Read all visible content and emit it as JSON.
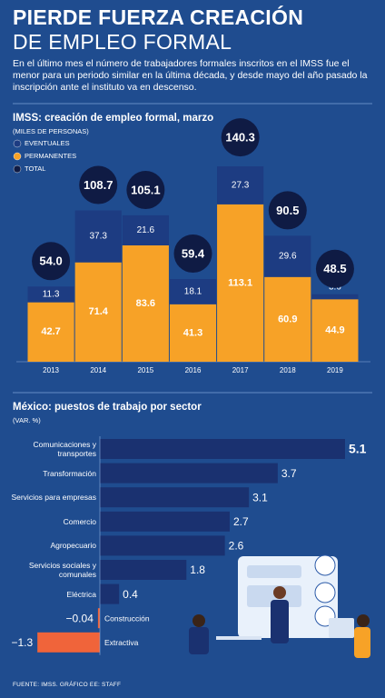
{
  "header": {
    "title_line1": "PIERDE FUERZA CREACIÓN",
    "title_line2": "DE EMPLEO FORMAL",
    "description": "En el último mes el número de trabajadores formales inscritos en el IMSS fue el menor para un periodo similar en la última década, y desde mayo del año pasado la inscripción ante el instituto va en descenso."
  },
  "chart_data": [
    {
      "type": "bar",
      "stacked": true,
      "title": "IMSS: creación de empleo formal, marzo",
      "subtitle": "(MILES DE PERSONAS)",
      "categories": [
        "2013",
        "2014",
        "2015",
        "2016",
        "2017",
        "2018",
        "2019"
      ],
      "series": [
        {
          "name": "EVENTUALES",
          "color": "#1d3c82",
          "values": [
            11.3,
            37.3,
            21.6,
            18.1,
            27.3,
            29.6,
            3.6
          ]
        },
        {
          "name": "PERMANENTES",
          "color": "#f7a227",
          "values": [
            42.7,
            71.4,
            83.6,
            41.3,
            113.1,
            60.9,
            44.9
          ]
        },
        {
          "name": "TOTAL",
          "color": "#0f1b44",
          "marker": "circle",
          "values": [
            54.0,
            108.7,
            105.1,
            59.4,
            140.3,
            90.5,
            48.5
          ],
          "value_labels": [
            "54.0",
            "108.7",
            "105.1",
            "59.4",
            "140.3",
            "90.5",
            "48.5"
          ]
        }
      ]
    },
    {
      "type": "bar",
      "orientation": "horizontal",
      "title": "México: puestos de trabajo por sector",
      "subtitle": "(VAR. %)",
      "categories": [
        "Comunicaciones y transportes",
        "Transformación",
        "Servicios para empresas",
        "Comercio",
        "Agropecuario",
        "Servicios sociales y comunales",
        "Eléctrica",
        "Construcción",
        "Extractiva"
      ],
      "values": [
        5.1,
        3.7,
        3.1,
        2.7,
        2.6,
        1.8,
        0.4,
        -0.04,
        -1.3
      ],
      "value_labels": [
        "5.1",
        "3.7",
        "3.1",
        "2.7",
        "2.6",
        "1.8",
        "0.4",
        "−0.04",
        "−1.3"
      ],
      "color": "#1a3170",
      "negative_color": "#f0643a"
    }
  ],
  "footer": {
    "source": "FUENTE: IMSS. GRÁFICO EE: STAFF"
  }
}
